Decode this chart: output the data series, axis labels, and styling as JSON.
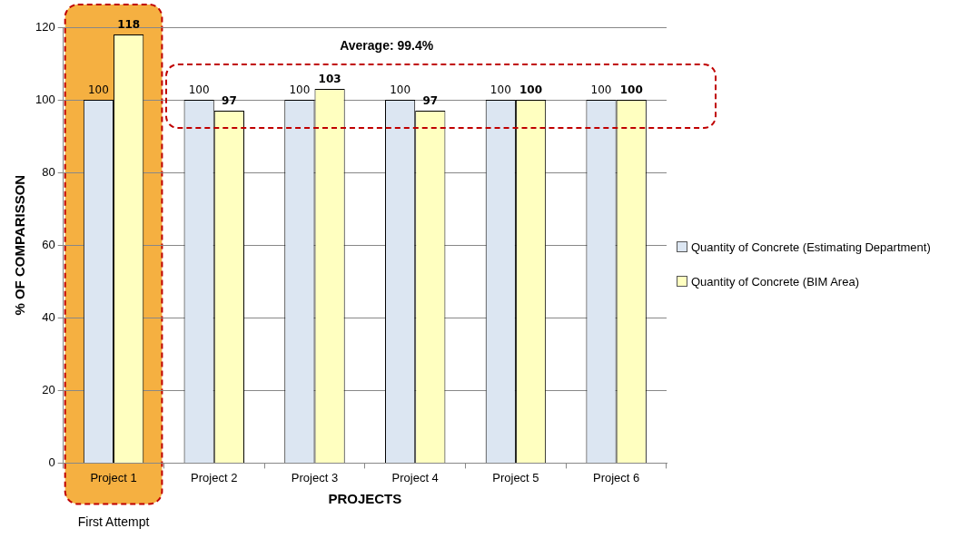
{
  "chart_data": {
    "type": "bar",
    "xlabel": "PROJECTS",
    "ylabel": "% OF COMPARISSON",
    "categories": [
      "Project 1",
      "Project 2",
      "Project 3",
      "Project 4",
      "Project 5",
      "Project 6"
    ],
    "series": [
      {
        "name": "Quantity of Concrete (Estimating Department)",
        "color": "#dce6f2",
        "values": [
          100,
          100,
          100,
          100,
          100,
          100
        ]
      },
      {
        "name": "Quantity of Concrete (BIM Area)",
        "color": "#ffffc0",
        "values": [
          118,
          97,
          103,
          97,
          100,
          100
        ]
      }
    ],
    "ylim": [
      0,
      120
    ],
    "yticks": [
      0,
      20,
      40,
      60,
      80,
      100,
      120
    ],
    "grid": "y",
    "legend": "right",
    "data_labels": true,
    "bands": [
      {
        "axis": "x",
        "from": "Project 1",
        "to": "Project 1",
        "label": "First Attempt",
        "color": "#f5b041"
      }
    ],
    "annotations": [
      "Average: 99.4%"
    ]
  }
}
